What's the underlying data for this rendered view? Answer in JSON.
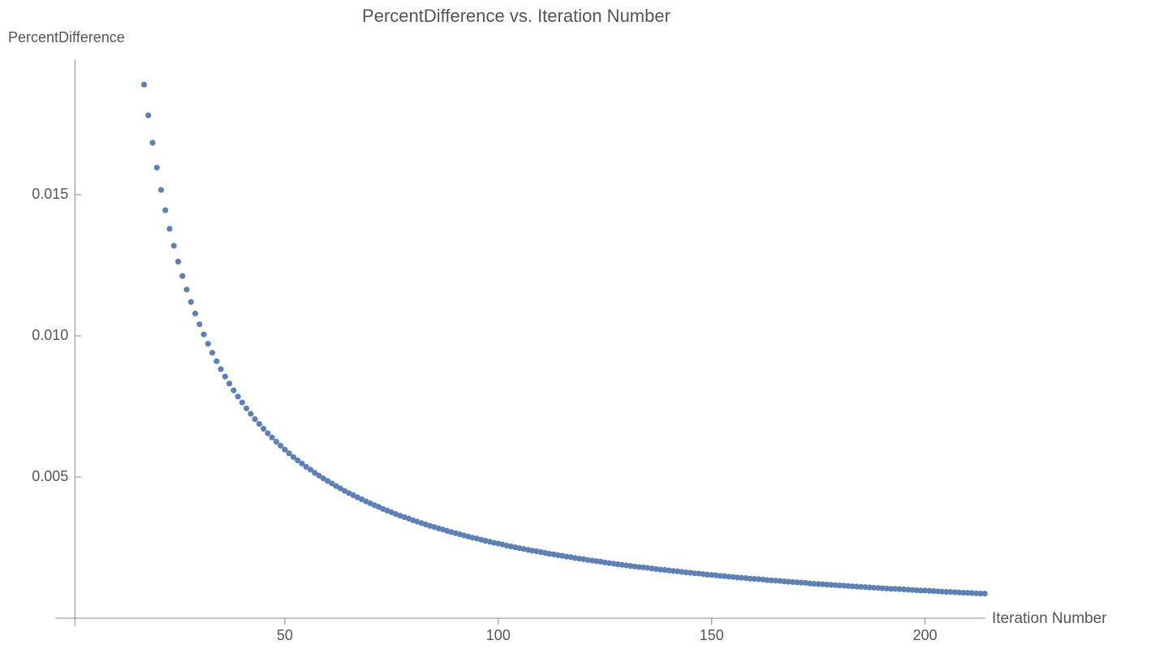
{
  "chart_data": {
    "type": "scatter",
    "title": "PercentDifference vs. Iteration Number",
    "y_label": "PercentDifference",
    "x_label": "Iteration Number",
    "color": "#5e81b5",
    "xlim": [
      1,
      217
    ],
    "ylim": [
      0,
      0.0195
    ],
    "xticks": [
      50,
      100,
      150,
      200
    ],
    "yticks": [
      0.005,
      {
        "value": 0.01,
        "label": "0.010"
      },
      0.015
    ],
    "x": [
      17,
      18,
      19,
      20,
      21,
      22,
      23,
      24,
      25,
      26,
      27,
      28,
      29,
      30,
      31,
      32,
      33,
      34,
      35,
      36,
      37,
      38,
      39,
      40,
      41,
      42,
      43,
      44,
      45,
      46,
      47,
      48,
      49,
      50,
      51,
      52,
      53,
      54,
      55,
      56,
      57,
      58,
      59,
      60,
      61,
      62,
      63,
      64,
      65,
      66,
      67,
      68,
      69,
      70,
      71,
      72,
      73,
      74,
      75,
      76,
      77,
      78,
      79,
      80,
      81,
      82,
      83,
      84,
      85,
      86,
      87,
      88,
      89,
      90,
      91,
      92,
      93,
      94,
      95,
      96,
      97,
      98,
      99,
      100,
      101,
      102,
      103,
      104,
      105,
      106,
      107,
      108,
      109,
      110,
      111,
      112,
      113,
      114,
      115,
      116,
      117,
      118,
      119,
      120,
      121,
      122,
      123,
      124,
      125,
      126,
      127,
      128,
      129,
      130,
      131,
      132,
      133,
      134,
      135,
      136,
      137,
      138,
      139,
      140,
      141,
      142,
      143,
      144,
      145,
      146,
      147,
      148,
      149,
      150,
      151,
      152,
      153,
      154,
      155,
      156,
      157,
      158,
      159,
      160,
      161,
      162,
      163,
      164,
      165,
      166,
      167,
      168,
      169,
      170,
      171,
      172,
      173,
      174,
      175,
      176,
      177,
      178,
      179,
      180,
      181,
      182,
      183,
      184,
      185,
      186,
      187,
      188,
      189,
      190,
      191,
      192,
      193,
      194,
      195,
      196,
      197,
      198,
      199,
      200,
      201,
      202,
      203,
      204,
      205,
      206,
      207,
      208,
      209,
      210,
      211,
      212,
      213,
      214
    ],
    "values": [
      0.0189,
      0.01781,
      0.01684,
      0.01596,
      0.01517,
      0.01445,
      0.01379,
      0.01319,
      0.01263,
      0.01212,
      0.01164,
      0.0112,
      0.01079,
      0.01041,
      0.01005,
      0.00972,
      0.0094,
      0.0091,
      0.00882,
      0.00856,
      0.00831,
      0.00807,
      0.00785,
      0.00764,
      0.00743,
      0.00724,
      0.00705,
      0.00688,
      0.00671,
      0.00655,
      0.0064,
      0.00625,
      0.00611,
      0.00597,
      0.00584,
      0.00571,
      0.00559,
      0.00548,
      0.00536,
      0.00526,
      0.00515,
      0.00505,
      0.00495,
      0.00486,
      0.00477,
      0.00468,
      0.0046,
      0.00451,
      0.00443,
      0.00436,
      0.00428,
      0.00421,
      0.00414,
      0.00407,
      0.004,
      0.00394,
      0.00387,
      0.00381,
      0.00375,
      0.00369,
      0.00363,
      0.00358,
      0.00353,
      0.00347,
      0.00342,
      0.00337,
      0.00332,
      0.00327,
      0.00323,
      0.00318,
      0.00314,
      0.00309,
      0.00305,
      0.00301,
      0.00297,
      0.00293,
      0.00289,
      0.00285,
      0.00282,
      0.00278,
      0.00274,
      0.00271,
      0.00267,
      0.00264,
      0.00261,
      0.00257,
      0.00254,
      0.00251,
      0.00248,
      0.00245,
      0.00242,
      0.00239,
      0.00237,
      0.00234,
      0.00231,
      0.00228,
      0.00226,
      0.00223,
      0.00221,
      0.00218,
      0.00216,
      0.00213,
      0.00211,
      0.00209,
      0.00206,
      0.00204,
      0.00202,
      0.002,
      0.00197,
      0.00195,
      0.00193,
      0.00191,
      0.00189,
      0.00187,
      0.00185,
      0.00183,
      0.00181,
      0.0018,
      0.00178,
      0.00176,
      0.00174,
      0.00172,
      0.00171,
      0.00169,
      0.00167,
      0.00166,
      0.00164,
      0.00162,
      0.00161,
      0.00159,
      0.00158,
      0.00156,
      0.00154,
      0.00153,
      0.00152,
      0.0015,
      0.00149,
      0.00147,
      0.00146,
      0.00144,
      0.00143,
      0.00142,
      0.0014,
      0.00139,
      0.00138,
      0.00137,
      0.00135,
      0.00134,
      0.00133,
      0.00132,
      0.0013,
      0.00129,
      0.00128,
      0.00127,
      0.00126,
      0.00125,
      0.00123,
      0.00122,
      0.00121,
      0.0012,
      0.00119,
      0.00118,
      0.00117,
      0.00116,
      0.00115,
      0.00114,
      0.00113,
      0.00112,
      0.00111,
      0.0011,
      0.00109,
      0.00108,
      0.00107,
      0.00106,
      0.00105,
      0.00104,
      0.00104,
      0.00103,
      0.00102,
      0.00101,
      0.001,
      0.00099,
      0.00098,
      0.00098,
      0.00097,
      0.00096,
      0.00095,
      0.00094,
      0.00093,
      0.00093,
      0.00092,
      0.00091,
      0.0009,
      0.0009,
      0.00089,
      0.00088,
      0.00087,
      0.00087
    ]
  }
}
